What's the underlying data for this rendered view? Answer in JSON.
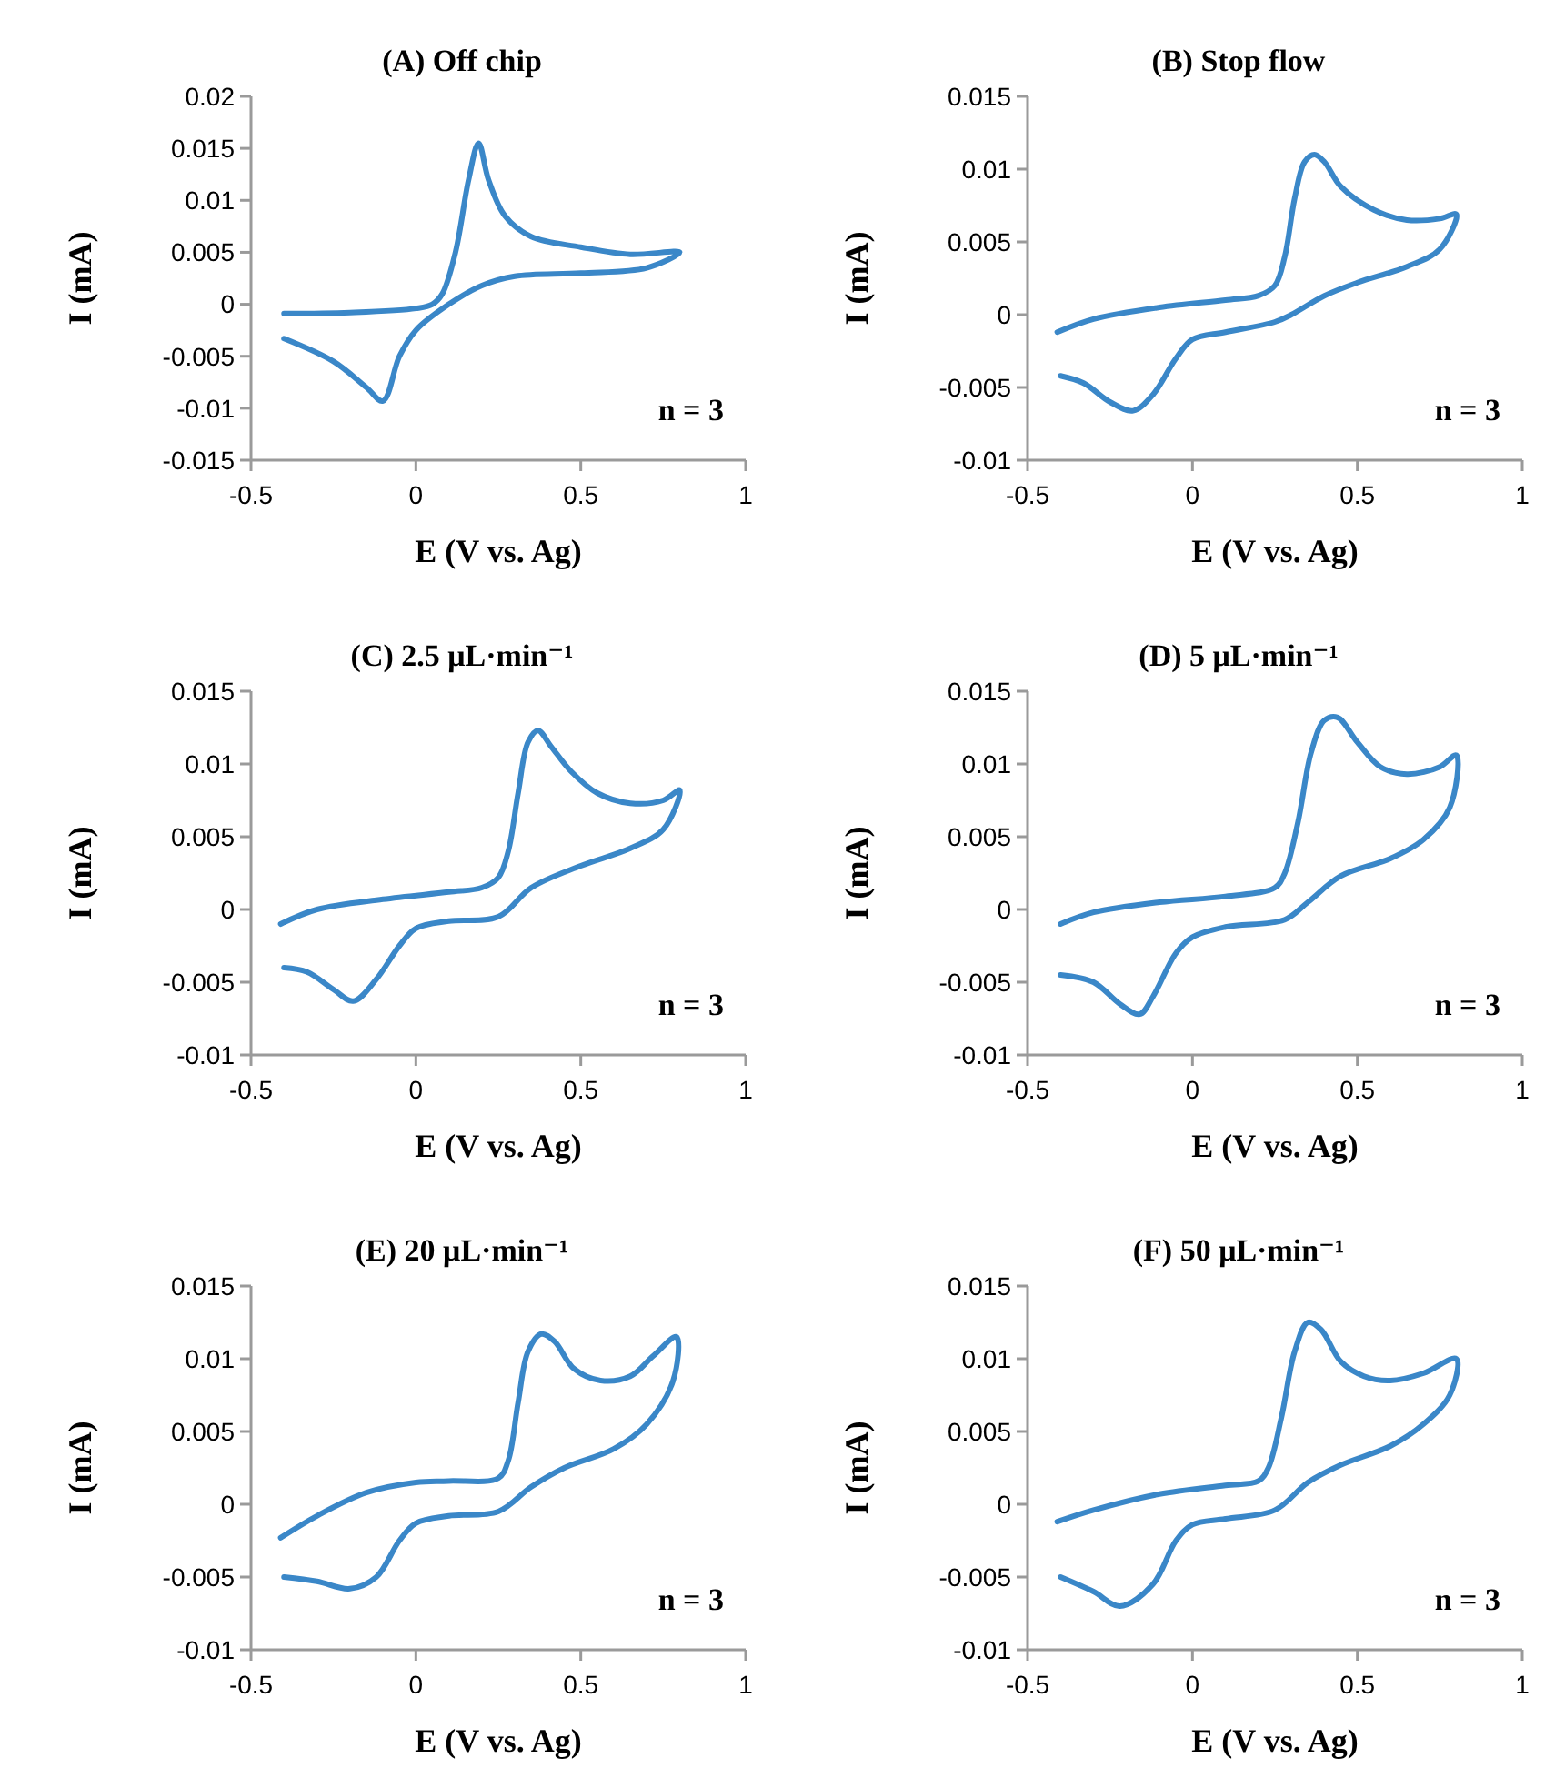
{
  "chart_data": [
    {
      "type": "line",
      "title": "(A) Off chip",
      "xlabel": "E (V vs. Ag)",
      "ylabel": "I (mA)",
      "annotations": [
        "n = 3"
      ],
      "xlim": [
        -0.5,
        1
      ],
      "xticks": [
        -0.5,
        0,
        0.5,
        1
      ],
      "ylim": [
        -0.015,
        0.02
      ],
      "yticks": [
        -0.015,
        -0.01,
        -0.005,
        0,
        0.005,
        0.01,
        0.015,
        0.02
      ],
      "series": [
        {
          "color": "#3a87c8",
          "x": [
            -0.4,
            -0.2,
            0,
            0.05,
            0.08,
            0.12,
            0.16,
            0.19,
            0.22,
            0.27,
            0.35,
            0.5,
            0.65,
            0.8,
            0.7,
            0.5,
            0.3,
            0.2,
            0.1,
            0,
            -0.05,
            -0.1,
            -0.15,
            -0.25,
            -0.4
          ],
          "values": [
            -0.0009,
            -0.0008,
            -0.0004,
            0,
            0.001,
            0.005,
            0.012,
            0.0155,
            0.012,
            0.0085,
            0.0065,
            0.0055,
            0.0048,
            0.005,
            0.0035,
            0.003,
            0.0027,
            0.0018,
            0,
            -0.0025,
            -0.005,
            -0.0093,
            -0.008,
            -0.0055,
            -0.0033
          ]
        }
      ]
    },
    {
      "type": "line",
      "title": "(B) Stop flow",
      "xlabel": "E (V vs. Ag)",
      "ylabel": "I (mA)",
      "annotations": [
        "n = 3"
      ],
      "xlim": [
        -0.5,
        1
      ],
      "xticks": [
        -0.5,
        0,
        0.5,
        1
      ],
      "ylim": [
        -0.01,
        0.015
      ],
      "yticks": [
        -0.01,
        -0.005,
        0,
        0.005,
        0.01,
        0.015
      ],
      "series": [
        {
          "color": "#3a87c8",
          "x": [
            -0.41,
            -0.3,
            -0.1,
            0.1,
            0.2,
            0.25,
            0.28,
            0.31,
            0.34,
            0.37,
            0.4,
            0.45,
            0.55,
            0.65,
            0.75,
            0.8,
            0.75,
            0.65,
            0.5,
            0.4,
            0.3,
            0.25,
            0.1,
            0,
            -0.05,
            -0.12,
            -0.18,
            -0.25,
            -0.33,
            -0.4
          ],
          "values": [
            -0.0012,
            -0.0003,
            0.0005,
            0.001,
            0.0013,
            0.002,
            0.004,
            0.008,
            0.0105,
            0.011,
            0.0105,
            0.0088,
            0.0072,
            0.0065,
            0.0066,
            0.0069,
            0.0045,
            0.0033,
            0.0022,
            0.0013,
            0,
            -0.0005,
            -0.0012,
            -0.0017,
            -0.003,
            -0.0055,
            -0.0066,
            -0.006,
            -0.0047,
            -0.0042
          ]
        }
      ]
    },
    {
      "type": "line",
      "title": "(C) 2.5 μL·min⁻¹",
      "xlabel": "E (V vs. Ag)",
      "ylabel": "I (mA)",
      "annotations": [
        "n = 3"
      ],
      "xlim": [
        -0.5,
        1
      ],
      "xticks": [
        -0.5,
        0,
        0.5,
        1
      ],
      "ylim": [
        -0.01,
        0.015
      ],
      "yticks": [
        -0.01,
        -0.005,
        0,
        0.005,
        0.01,
        0.015
      ],
      "series": [
        {
          "color": "#3a87c8",
          "x": [
            -0.41,
            -0.3,
            -0.1,
            0.1,
            0.2,
            0.25,
            0.28,
            0.31,
            0.34,
            0.37,
            0.41,
            0.47,
            0.55,
            0.65,
            0.75,
            0.8,
            0.75,
            0.65,
            0.5,
            0.35,
            0.25,
            0.1,
            0,
            -0.05,
            -0.12,
            -0.19,
            -0.25,
            -0.33,
            -0.4
          ],
          "values": [
            -0.001,
            0,
            0.0007,
            0.0012,
            0.0015,
            0.0022,
            0.004,
            0.008,
            0.0115,
            0.0123,
            0.0112,
            0.0095,
            0.008,
            0.0073,
            0.0075,
            0.0082,
            0.0055,
            0.0042,
            0.003,
            0.0015,
            -0.0005,
            -0.0008,
            -0.0013,
            -0.0025,
            -0.0048,
            -0.0063,
            -0.0055,
            -0.0043,
            -0.004
          ]
        }
      ]
    },
    {
      "type": "line",
      "title": "(D) 5 μL·min⁻¹",
      "xlabel": "E (V vs. Ag)",
      "ylabel": "I (mA)",
      "annotations": [
        "n = 3"
      ],
      "xlim": [
        -0.5,
        1
      ],
      "xticks": [
        -0.5,
        0,
        0.5,
        1
      ],
      "ylim": [
        -0.01,
        0.015
      ],
      "yticks": [
        -0.01,
        -0.005,
        0,
        0.005,
        0.01,
        0.015
      ],
      "series": [
        {
          "color": "#3a87c8",
          "x": [
            -0.4,
            -0.3,
            -0.1,
            0.1,
            0.25,
            0.28,
            0.32,
            0.36,
            0.4,
            0.44,
            0.5,
            0.57,
            0.65,
            0.75,
            0.8,
            0.78,
            0.7,
            0.6,
            0.45,
            0.35,
            0.28,
            0.1,
            0,
            -0.05,
            -0.12,
            -0.16,
            -0.22,
            -0.3,
            -0.4
          ],
          "values": [
            -0.001,
            -0.0002,
            0.0005,
            0.0009,
            0.0015,
            0.0025,
            0.006,
            0.0108,
            0.013,
            0.0132,
            0.0115,
            0.0098,
            0.0093,
            0.0098,
            0.0106,
            0.007,
            0.0048,
            0.0035,
            0.0023,
            0.0005,
            -0.0007,
            -0.0012,
            -0.0019,
            -0.003,
            -0.006,
            -0.0072,
            -0.0065,
            -0.005,
            -0.0045
          ]
        }
      ]
    },
    {
      "type": "line",
      "title": "(E) 20 μL·min⁻¹",
      "xlabel": "E (V vs. Ag)",
      "ylabel": "I (mA)",
      "annotations": [
        "n = 3"
      ],
      "xlim": [
        -0.5,
        1
      ],
      "xticks": [
        -0.5,
        0,
        0.5,
        1
      ],
      "ylim": [
        -0.01,
        0.015
      ],
      "yticks": [
        -0.01,
        -0.005,
        0,
        0.005,
        0.01,
        0.015
      ],
      "series": [
        {
          "color": "#3a87c8",
          "x": [
            -0.41,
            -0.3,
            -0.15,
            0,
            0.1,
            0.25,
            0.28,
            0.31,
            0.34,
            0.38,
            0.42,
            0.48,
            0.56,
            0.65,
            0.72,
            0.79,
            0.78,
            0.7,
            0.6,
            0.45,
            0.35,
            0.25,
            0.1,
            0,
            -0.05,
            -0.12,
            -0.2,
            -0.3,
            -0.4
          ],
          "values": [
            -0.0023,
            -0.0008,
            0.0008,
            0.0015,
            0.0016,
            0.0018,
            0.003,
            0.007,
            0.0105,
            0.0117,
            0.0112,
            0.0093,
            0.0085,
            0.0088,
            0.0102,
            0.0115,
            0.0085,
            0.0055,
            0.0038,
            0.0025,
            0.0012,
            -0.0005,
            -0.0008,
            -0.0013,
            -0.0025,
            -0.005,
            -0.0058,
            -0.0053,
            -0.005
          ]
        }
      ]
    },
    {
      "type": "line",
      "title": "(F)  50 μL·min⁻¹",
      "xlabel": "E (V vs. Ag)",
      "ylabel": "I (mA)",
      "annotations": [
        "n = 3"
      ],
      "xlim": [
        -0.5,
        1
      ],
      "xticks": [
        -0.5,
        0,
        0.5,
        1
      ],
      "ylim": [
        -0.01,
        0.015
      ],
      "yticks": [
        -0.01,
        -0.005,
        0,
        0.005,
        0.01,
        0.015
      ],
      "series": [
        {
          "color": "#3a87c8",
          "x": [
            -0.41,
            -0.3,
            -0.1,
            0.1,
            0.2,
            0.23,
            0.27,
            0.31,
            0.35,
            0.39,
            0.45,
            0.52,
            0.6,
            0.7,
            0.8,
            0.78,
            0.7,
            0.6,
            0.45,
            0.35,
            0.25,
            0.1,
            0,
            -0.05,
            -0.12,
            -0.22,
            -0.3,
            -0.4
          ],
          "values": [
            -0.0012,
            -0.0004,
            0.0007,
            0.0013,
            0.0016,
            0.0025,
            0.006,
            0.0105,
            0.0125,
            0.012,
            0.0098,
            0.0088,
            0.0085,
            0.009,
            0.01,
            0.0075,
            0.0055,
            0.004,
            0.0027,
            0.0015,
            -0.0004,
            -0.001,
            -0.0014,
            -0.0025,
            -0.0055,
            -0.007,
            -0.006,
            -0.005
          ]
        }
      ]
    }
  ]
}
